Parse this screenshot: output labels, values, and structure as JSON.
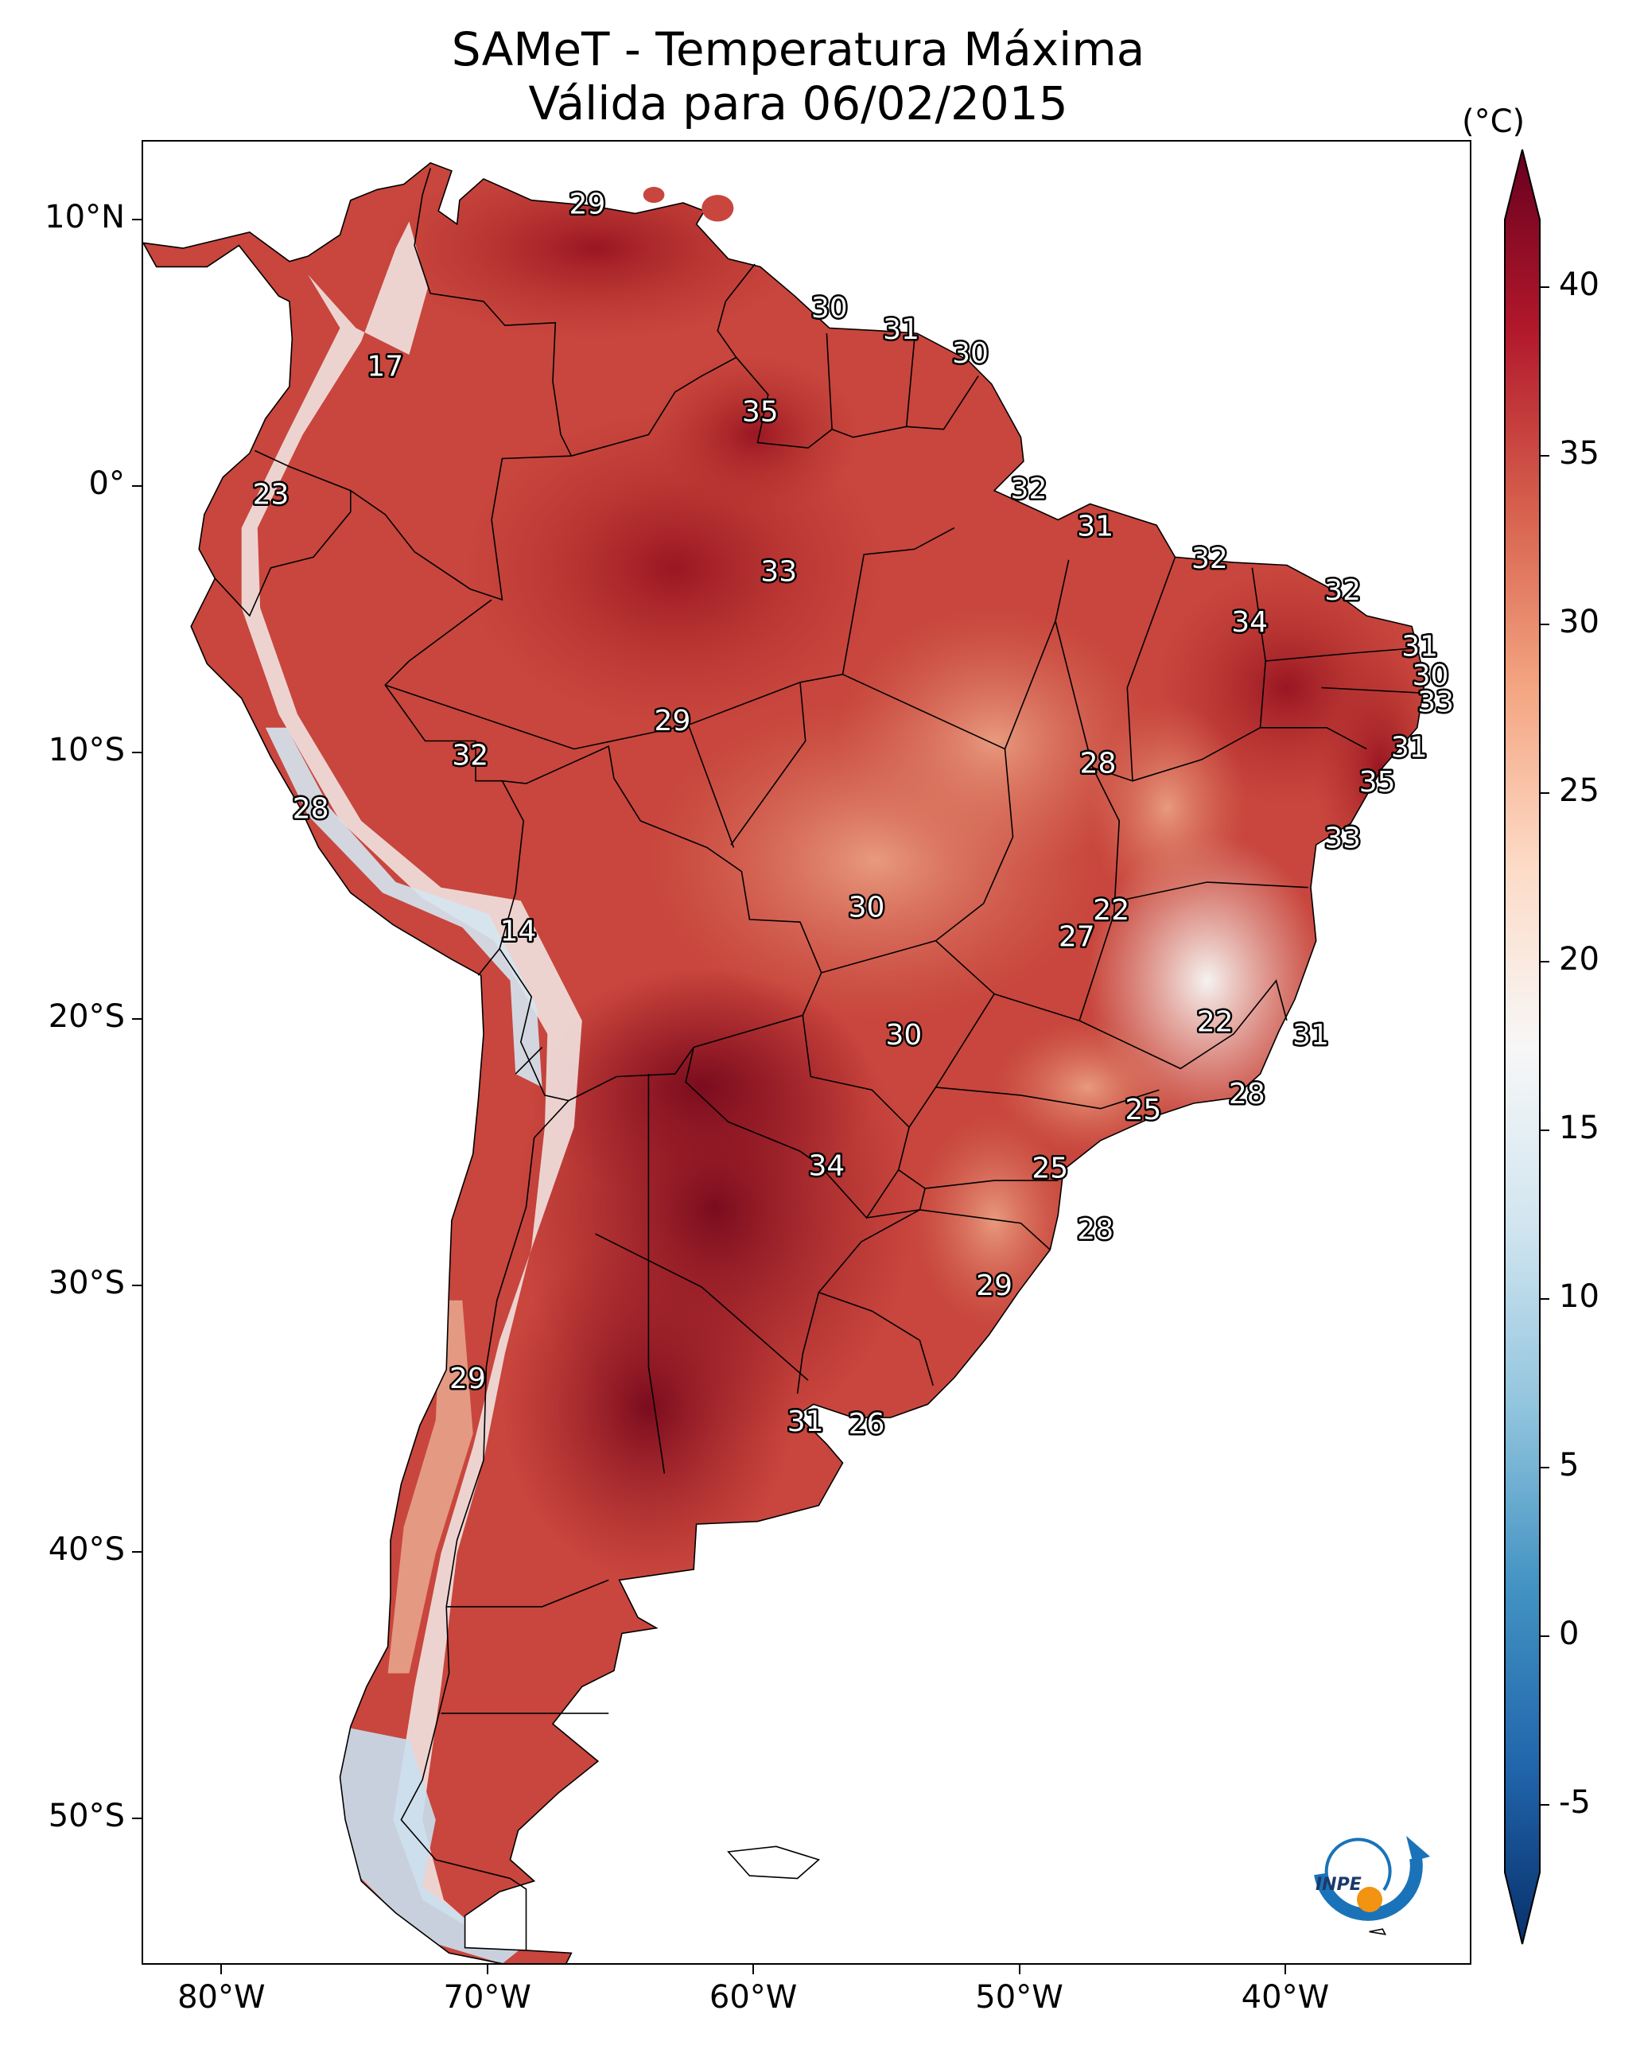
{
  "title": "SAMeT - Temperatura Máxima",
  "subtitle": "Válida para 06/02/2015",
  "colorbar": {
    "unit": "(°C)",
    "min": -7,
    "max": 42,
    "ticks": [
      "40",
      "35",
      "30",
      "25",
      "20",
      "15",
      "10",
      "5",
      "0",
      "-5"
    ],
    "tick_values": [
      40,
      35,
      30,
      25,
      20,
      15,
      10,
      5,
      0,
      -5
    ],
    "colors": [
      "#08306b",
      "#2166ac",
      "#4393c3",
      "#92c5de",
      "#d1e5f0",
      "#f7f7f7",
      "#fddbc7",
      "#f4a582",
      "#d6604d",
      "#b2182b",
      "#67001f"
    ]
  },
  "axes": {
    "lat_labels": [
      "10°N",
      "0°",
      "10°S",
      "20°S",
      "30°S",
      "40°S",
      "50°S"
    ],
    "lat_values": [
      10,
      0,
      -10,
      -20,
      -30,
      -40,
      -50
    ],
    "lon_labels": [
      "80°W",
      "70°W",
      "60°W",
      "50°W",
      "40°W"
    ],
    "lon_values": [
      -80,
      -70,
      -60,
      -50,
      -40
    ],
    "lon_range": [
      -83,
      -33
    ],
    "lat_range": [
      13,
      -55.5
    ]
  },
  "temperature_labels": [
    {
      "text": "29",
      "lon": -66.3,
      "lat": 10.6
    },
    {
      "text": "30",
      "lon": -57.2,
      "lat": 6.7
    },
    {
      "text": "31",
      "lon": -54.5,
      "lat": 5.9
    },
    {
      "text": "30",
      "lon": -51.9,
      "lat": 5.0
    },
    {
      "text": "17",
      "lon": -73.9,
      "lat": 4.5
    },
    {
      "text": "35",
      "lon": -59.8,
      "lat": 2.8
    },
    {
      "text": "32",
      "lon": -49.7,
      "lat": -0.1
    },
    {
      "text": "23",
      "lon": -78.2,
      "lat": -0.3
    },
    {
      "text": "31",
      "lon": -47.2,
      "lat": -1.5
    },
    {
      "text": "32",
      "lon": -42.9,
      "lat": -2.7
    },
    {
      "text": "33",
      "lon": -59.1,
      "lat": -3.2
    },
    {
      "text": "32",
      "lon": -37.9,
      "lat": -3.9
    },
    {
      "text": "34",
      "lon": -41.4,
      "lat": -5.1
    },
    {
      "text": "31",
      "lon": -35.0,
      "lat": -6.0
    },
    {
      "text": "30",
      "lon": -34.6,
      "lat": -7.1
    },
    {
      "text": "33",
      "lon": -34.4,
      "lat": -8.1
    },
    {
      "text": "29",
      "lon": -63.1,
      "lat": -8.8
    },
    {
      "text": "31",
      "lon": -35.4,
      "lat": -9.8
    },
    {
      "text": "32",
      "lon": -70.7,
      "lat": -10.1
    },
    {
      "text": "28",
      "lon": -47.1,
      "lat": -10.4
    },
    {
      "text": "35",
      "lon": -36.6,
      "lat": -11.1
    },
    {
      "text": "28",
      "lon": -76.7,
      "lat": -12.1
    },
    {
      "text": "33",
      "lon": -37.9,
      "lat": -13.2
    },
    {
      "text": "30",
      "lon": -55.8,
      "lat": -15.8
    },
    {
      "text": "22",
      "lon": -46.6,
      "lat": -15.9
    },
    {
      "text": "27",
      "lon": -47.9,
      "lat": -16.9
    },
    {
      "text": "14",
      "lon": -68.9,
      "lat": -16.7
    },
    {
      "text": "22",
      "lon": -42.7,
      "lat": -20.1
    },
    {
      "text": "30",
      "lon": -54.4,
      "lat": -20.6
    },
    {
      "text": "31",
      "lon": -39.1,
      "lat": -20.6
    },
    {
      "text": "28",
      "lon": -41.5,
      "lat": -22.8
    },
    {
      "text": "25",
      "lon": -45.4,
      "lat": -23.4
    },
    {
      "text": "34",
      "lon": -57.3,
      "lat": -25.5
    },
    {
      "text": "25",
      "lon": -48.9,
      "lat": -25.6
    },
    {
      "text": "28",
      "lon": -47.2,
      "lat": -27.9
    },
    {
      "text": "29",
      "lon": -51.0,
      "lat": -30.0
    },
    {
      "text": "29",
      "lon": -70.8,
      "lat": -33.5
    },
    {
      "text": "31",
      "lon": -58.1,
      "lat": -35.1
    },
    {
      "text": "26",
      "lon": -55.8,
      "lat": -35.2
    }
  ],
  "logo": {
    "text": "INPE"
  }
}
